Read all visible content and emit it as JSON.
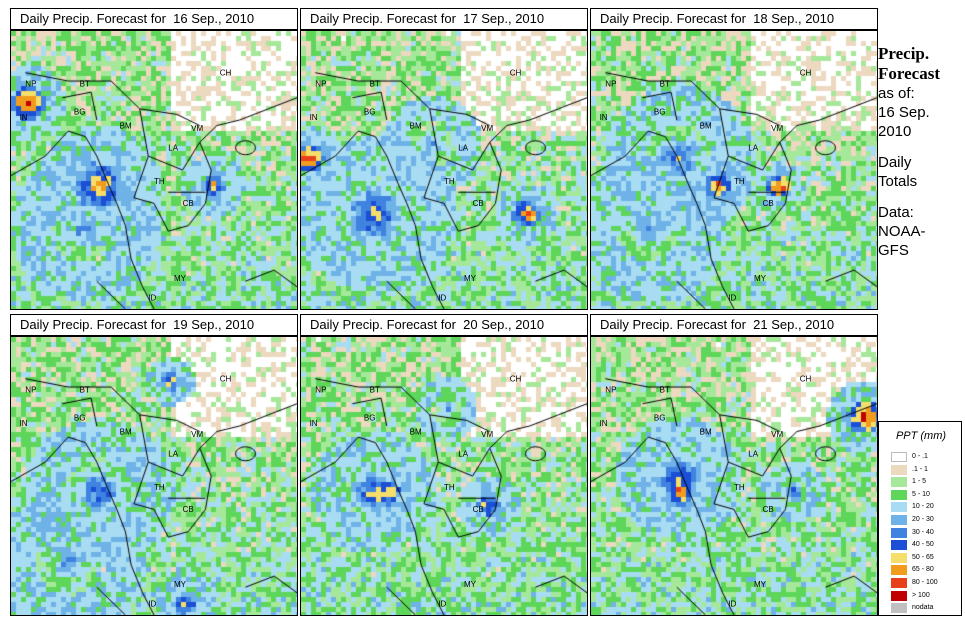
{
  "panels": [
    {
      "title": "Daily Precip. Forecast for  16 Sep., 2010"
    },
    {
      "title": "Daily Precip. Forecast for  17 Sep., 2010"
    },
    {
      "title": "Daily Precip. Forecast for  18 Sep., 2010"
    },
    {
      "title": "Daily Precip. Forecast for  19 Sep., 2010"
    },
    {
      "title": "Daily Precip. Forecast for  20 Sep., 2010"
    },
    {
      "title": "Daily Precip. Forecast for  21 Sep., 2010"
    }
  ],
  "country_labels": [
    "NP",
    "BT",
    "IN",
    "BG",
    "BM",
    "CH",
    "VM",
    "LA",
    "TH",
    "CB",
    "MY",
    "ID"
  ],
  "sidebar": {
    "title_line1": "Precip.",
    "title_line2": "Forecast",
    "as_of": "as of:",
    "date_line1": "16 Sep.",
    "date_line2": "2010",
    "daily": "Daily",
    "totals": "Totals",
    "data_label": "Data:",
    "source_line1": "NOAA-",
    "source_line2": "GFS"
  },
  "legend": {
    "title": "PPT (mm)",
    "items": [
      {
        "label": "0 - .1",
        "color": "#ffffff"
      },
      {
        "label": ".1 - 1",
        "color": "#ecd9c0"
      },
      {
        "label": "1 - 5",
        "color": "#a6e89a"
      },
      {
        "label": "5 - 10",
        "color": "#5ed65a"
      },
      {
        "label": "10 - 20",
        "color": "#a8dcf2"
      },
      {
        "label": "20 - 30",
        "color": "#6fb2e8"
      },
      {
        "label": "30 - 40",
        "color": "#3f82e0"
      },
      {
        "label": "40 - 50",
        "color": "#1a4fd6"
      },
      {
        "label": "50 - 65",
        "color": "#f5df6a"
      },
      {
        "label": "65 - 80",
        "color": "#f29c1e"
      },
      {
        "label": "80 - 100",
        "color": "#e8401a"
      },
      {
        "label": "> 100",
        "color": "#c00000"
      },
      {
        "label": "nodata",
        "color": "#c0c0c0"
      }
    ]
  }
}
